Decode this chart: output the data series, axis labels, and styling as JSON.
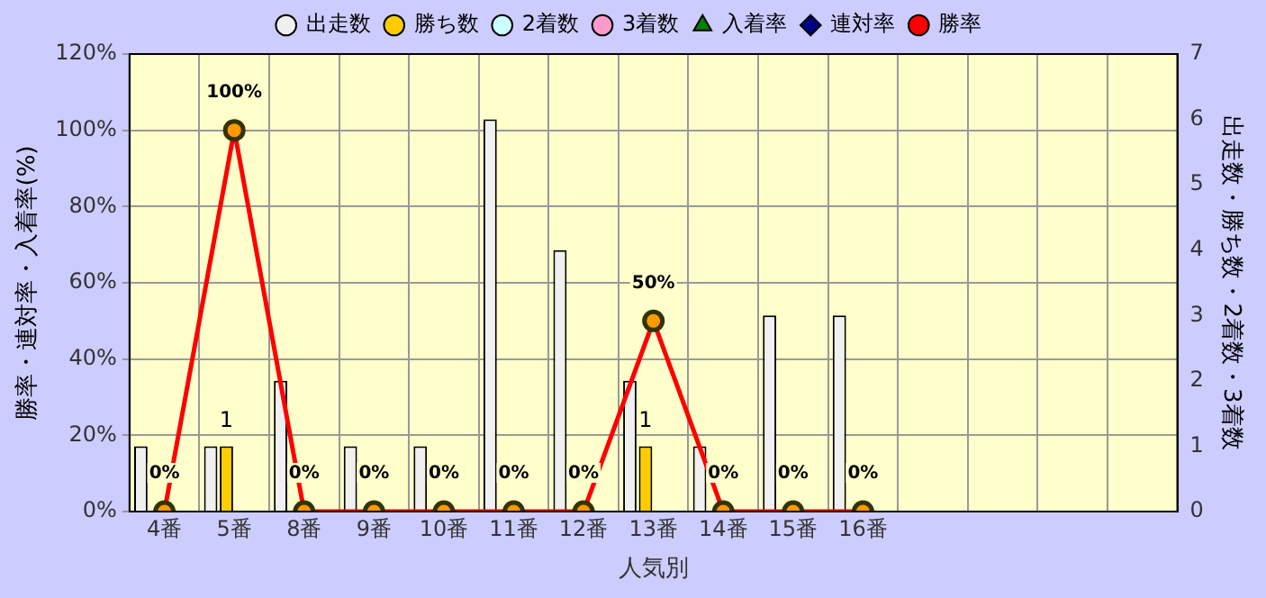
{
  "chart_data": {
    "type": "bar",
    "xlabel": "人気別",
    "ylabel": "勝率・連対率・入着率(%)",
    "y2label": "出走数・勝ち数・2着数・3着数",
    "categories": [
      "4番",
      "5番",
      "8番",
      "9番",
      "10番",
      "11番",
      "12番",
      "13番",
      "14番",
      "15番",
      "16番",
      null,
      null,
      null,
      null
    ],
    "series": [
      {
        "name": "出走数",
        "axis": "y2",
        "color": "#f0f0f0",
        "values": [
          1,
          1,
          2,
          1,
          1,
          6,
          4,
          2,
          1,
          3,
          3,
          null,
          null,
          null,
          null
        ]
      },
      {
        "name": "勝ち数",
        "axis": "y2",
        "color": "#ffcc00",
        "values": [
          0,
          1,
          0,
          0,
          0,
          0,
          0,
          1,
          0,
          0,
          0,
          null,
          null,
          null,
          null
        ],
        "value_labels": [
          null,
          "1",
          null,
          null,
          null,
          null,
          null,
          "1",
          null,
          null,
          null,
          null,
          null,
          null,
          null
        ]
      },
      {
        "name": "2着数",
        "axis": "y2",
        "color": "#ccffff",
        "values": [
          0,
          0,
          0,
          0,
          0,
          0,
          0,
          0,
          0,
          0,
          0,
          null,
          null,
          null,
          null
        ]
      },
      {
        "name": "3着数",
        "axis": "y2",
        "color": "#ff99cc",
        "values": [
          0,
          0,
          0,
          0,
          0,
          0,
          0,
          0,
          0,
          0,
          0,
          null,
          null,
          null,
          null
        ]
      },
      {
        "name": "入着率",
        "type": "line",
        "axis": "y",
        "color": "#008000",
        "marker": "triangle",
        "values": [
          null,
          null,
          null,
          null,
          null,
          null,
          null,
          null,
          null,
          null,
          null,
          null,
          null,
          null,
          null
        ]
      },
      {
        "name": "連対率",
        "type": "line",
        "axis": "y",
        "color": "#000080",
        "marker": "diamond",
        "values": [
          null,
          null,
          null,
          null,
          null,
          null,
          null,
          null,
          null,
          null,
          null,
          null,
          null,
          null,
          null
        ]
      },
      {
        "name": "勝率",
        "type": "line",
        "axis": "y",
        "color": "#ff0000",
        "marker": "circle",
        "values": [
          0,
          100,
          0,
          0,
          0,
          0,
          0,
          50,
          0,
          0,
          0,
          null,
          null,
          null,
          null
        ],
        "value_labels": [
          "0%",
          "100%",
          "0%",
          "0%",
          "0%",
          "0%",
          "0%",
          "50%",
          "0%",
          "0%",
          "0%",
          null,
          null,
          null,
          null
        ]
      }
    ],
    "ylim": [
      0,
      120
    ],
    "yticks": [
      {
        "value": 0,
        "label": "0%"
      },
      {
        "value": 20,
        "label": "20%"
      },
      {
        "value": 40,
        "label": "40%"
      },
      {
        "value": 60,
        "label": "60%"
      },
      {
        "value": 80,
        "label": "80%"
      },
      {
        "value": 100,
        "label": "100%"
      },
      {
        "value": 120,
        "label": "120%"
      }
    ],
    "y2lim": [
      0,
      7
    ],
    "y2ticks": [
      0,
      1,
      2,
      3,
      4,
      5,
      6,
      7
    ],
    "grid": true,
    "legend": "top"
  }
}
